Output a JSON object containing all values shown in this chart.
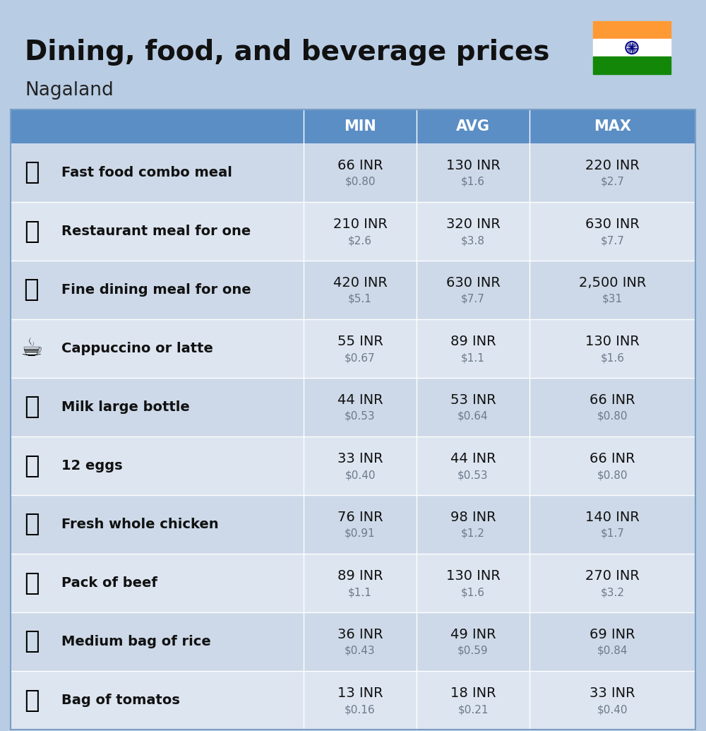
{
  "title": "Dining, food, and beverage prices",
  "subtitle": "Nagaland",
  "bg_color": "#b8cce4",
  "header_bg": "#5b8ec4",
  "header_text_color": "#ffffff",
  "row_colors": [
    "#cdd9e8",
    "#dde5f0"
  ],
  "col_headers": [
    "MIN",
    "AVG",
    "MAX"
  ],
  "rows": [
    {
      "label": "Fast food combo meal",
      "emoji": "🍔",
      "min_inr": "66 INR",
      "min_usd": "$0.80",
      "avg_inr": "130 INR",
      "avg_usd": "$1.6",
      "max_inr": "220 INR",
      "max_usd": "$2.7"
    },
    {
      "label": "Restaurant meal for one",
      "emoji": "🍳",
      "min_inr": "210 INR",
      "min_usd": "$2.6",
      "avg_inr": "320 INR",
      "avg_usd": "$3.8",
      "max_inr": "630 INR",
      "max_usd": "$7.7"
    },
    {
      "label": "Fine dining meal for one",
      "emoji": "🍽️",
      "min_inr": "420 INR",
      "min_usd": "$5.1",
      "avg_inr": "630 INR",
      "avg_usd": "$7.7",
      "max_inr": "2,500 INR",
      "max_usd": "$31"
    },
    {
      "label": "Cappuccino or latte",
      "emoji": "☕️",
      "min_inr": "55 INR",
      "min_usd": "$0.67",
      "avg_inr": "89 INR",
      "avg_usd": "$1.1",
      "max_inr": "130 INR",
      "max_usd": "$1.6"
    },
    {
      "label": "Milk large bottle",
      "emoji": "🥛",
      "min_inr": "44 INR",
      "min_usd": "$0.53",
      "avg_inr": "53 INR",
      "avg_usd": "$0.64",
      "max_inr": "66 INR",
      "max_usd": "$0.80"
    },
    {
      "label": "12 eggs",
      "emoji": "🥚",
      "min_inr": "33 INR",
      "min_usd": "$0.40",
      "avg_inr": "44 INR",
      "avg_usd": "$0.53",
      "max_inr": "66 INR",
      "max_usd": "$0.80"
    },
    {
      "label": "Fresh whole chicken",
      "emoji": "🐔",
      "min_inr": "76 INR",
      "min_usd": "$0.91",
      "avg_inr": "98 INR",
      "avg_usd": "$1.2",
      "max_inr": "140 INR",
      "max_usd": "$1.7"
    },
    {
      "label": "Pack of beef",
      "emoji": "🥩",
      "min_inr": "89 INR",
      "min_usd": "$1.1",
      "avg_inr": "130 INR",
      "avg_usd": "$1.6",
      "max_inr": "270 INR",
      "max_usd": "$3.2"
    },
    {
      "label": "Medium bag of rice",
      "emoji": "🍚",
      "min_inr": "36 INR",
      "min_usd": "$0.43",
      "avg_inr": "49 INR",
      "avg_usd": "$0.59",
      "max_inr": "69 INR",
      "max_usd": "$0.84"
    },
    {
      "label": "Bag of tomatos",
      "emoji": "🍅",
      "min_inr": "13 INR",
      "min_usd": "$0.16",
      "avg_inr": "18 INR",
      "avg_usd": "$0.21",
      "max_inr": "33 INR",
      "max_usd": "$0.40"
    }
  ]
}
